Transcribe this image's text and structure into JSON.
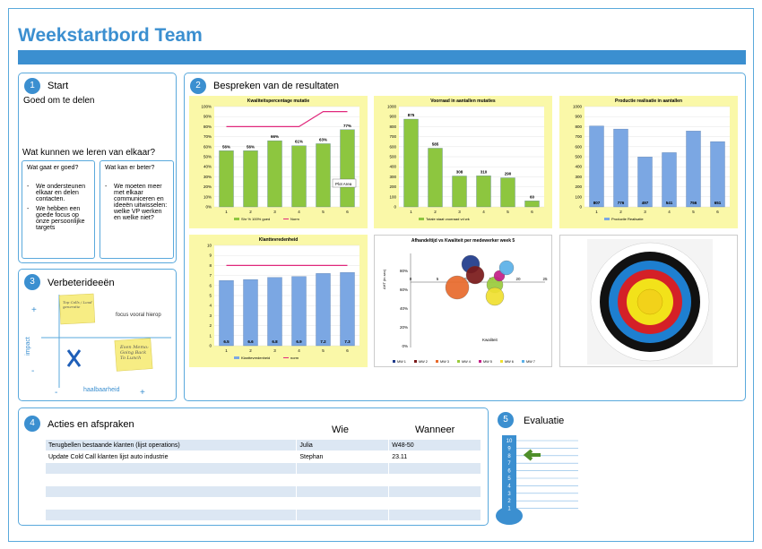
{
  "header": {
    "title": "Weekstartbord Team"
  },
  "start": {
    "num": "1",
    "title": "Start",
    "subtitle": "Goed om te delen",
    "question": "Wat kunnen we leren van elkaar?",
    "good": {
      "title": "Wat gaat er goed?",
      "items": [
        "We ondersteunen elkaar en delen contacten.",
        "We hebben een goede focus op onze persoonlijke targets"
      ]
    },
    "better": {
      "title": "Wat kan er beter?",
      "items": [
        "We moeten meer met elkaar communiceren en ideeën uitwisselen: welke VP werken en welke niet?"
      ]
    }
  },
  "verbeter": {
    "num": "3",
    "title": "Verbeterideeën",
    "focus": "focus vooral hierop",
    "yaxis": "impact",
    "xaxis": "haalbaarheid",
    "plus": "+",
    "minus": "-",
    "note1": "Top Calls / Lead generatie",
    "note2": "Even Memo: Going Back To Lunch"
  },
  "results": {
    "num": "2",
    "title": "Bespreken van de resultaten"
  },
  "chart1": {
    "title": "Kwaliteitspercentage mutatie",
    "chart_data": {
      "type": "bar",
      "categories": [
        "1",
        "2",
        "3",
        "4",
        "5",
        "6"
      ],
      "values": [
        56,
        56,
        66,
        61,
        63,
        77
      ],
      "labels": [
        "56%",
        "56%",
        "66%",
        "61%",
        "63%",
        "77%"
      ],
      "norm": [
        80,
        80,
        80,
        80,
        95,
        95
      ],
      "ylim": [
        0,
        100
      ],
      "yticks": [
        "0%",
        "10%",
        "20%",
        "30%",
        "40%",
        "50%",
        "60%",
        "70%",
        "80%",
        "90%",
        "100%"
      ],
      "legend": [
        "Shr % 100% goed",
        "Norm"
      ],
      "tooltip": "Plot Area"
    }
  },
  "chart2": {
    "title": "Voorraad in aantallen mutaties",
    "chart_data": {
      "type": "bar",
      "categories": [
        "1",
        "2",
        "3",
        "4",
        "5",
        "6"
      ],
      "values": [
        875,
        585,
        308,
        310,
        290,
        60
      ],
      "labels": [
        "875",
        "585",
        "308",
        "310",
        "290",
        "60"
      ],
      "ylim": [
        0,
        1000
      ],
      "yticks": [
        "0",
        "100",
        "200",
        "300",
        "400",
        "500",
        "600",
        "700",
        "800",
        "900",
        "1000"
      ],
      "legend": [
        "Totale staat voorraad vd wk"
      ]
    }
  },
  "chart3": {
    "title": "Productie realisatie in aantallen",
    "chart_data": {
      "type": "bar",
      "categories": [
        "1",
        "2",
        "3",
        "4",
        "5",
        "6"
      ],
      "values": [
        807,
        776,
        497,
        541,
        756,
        651
      ],
      "labels": [
        "807",
        "776",
        "497",
        "541",
        "756",
        "651"
      ],
      "ylim": [
        0,
        1000
      ],
      "yticks": [
        "0",
        "100",
        "200",
        "300",
        "400",
        "500",
        "600",
        "700",
        "800",
        "900",
        "1000"
      ],
      "legend": [
        "Productie Realisatie"
      ]
    }
  },
  "chart4": {
    "title": "Klanttevredenheid",
    "chart_data": {
      "type": "bar",
      "categories": [
        "1",
        "2",
        "3",
        "4",
        "5",
        "6"
      ],
      "values": [
        6.5,
        6.6,
        6.8,
        6.9,
        7.2,
        7.3
      ],
      "labels": [
        "6.5",
        "6.6",
        "6.8",
        "6.9",
        "7.2",
        "7.3"
      ],
      "norm": [
        8,
        8,
        8,
        8,
        8,
        8
      ],
      "ylim": [
        0,
        10
      ],
      "yticks": [
        "0",
        "1",
        "2",
        "3",
        "4",
        "5",
        "6",
        "7",
        "8",
        "9",
        "10"
      ],
      "legend": [
        "Klanttevredenheid",
        "norm"
      ]
    }
  },
  "chart5": {
    "title": "Afhandeltijd vs Kwaliteit per medewerker week 5",
    "xlabel_left": "AHT (in sec)",
    "ylabel": "Kwaliteit",
    "chart_data": {
      "type": "scatter",
      "xticks": [
        "0",
        "5",
        "10",
        "15",
        "20",
        "25"
      ],
      "yticks": [
        "0%",
        "20%",
        "40%",
        "60%",
        "80%"
      ],
      "legend": [
        "MW 1",
        "MW 2",
        "MW 3",
        "MW 4",
        "MW 5",
        "MW 6",
        "MW 7"
      ],
      "colors": [
        "#1f3a8a",
        "#7a1a1a",
        "#e86a2c",
        "#9acb3c",
        "#c41e88",
        "#f0e030",
        "#5bb0e8"
      ]
    }
  },
  "acties": {
    "num": "4",
    "title": "Acties en afspraken",
    "col_wie": "Wie",
    "col_wanneer": "Wanneer",
    "rows": [
      [
        "Terugbellen bestaande klanten (lijst operations)",
        "Julia",
        "W48-50"
      ],
      [
        "Update Cold Call klanten lijst auto industrie",
        "Stephan",
        "23.11"
      ],
      [
        "",
        "",
        ""
      ],
      [
        "",
        "",
        ""
      ],
      [
        "",
        "",
        ""
      ],
      [
        "",
        "",
        ""
      ],
      [
        "",
        "",
        ""
      ]
    ]
  },
  "evaluatie": {
    "num": "5",
    "title": "Evaluatie",
    "scale": [
      "10",
      "9",
      "8",
      "7",
      "6",
      "5",
      "4",
      "3",
      "2",
      "1"
    ],
    "value": 8
  }
}
